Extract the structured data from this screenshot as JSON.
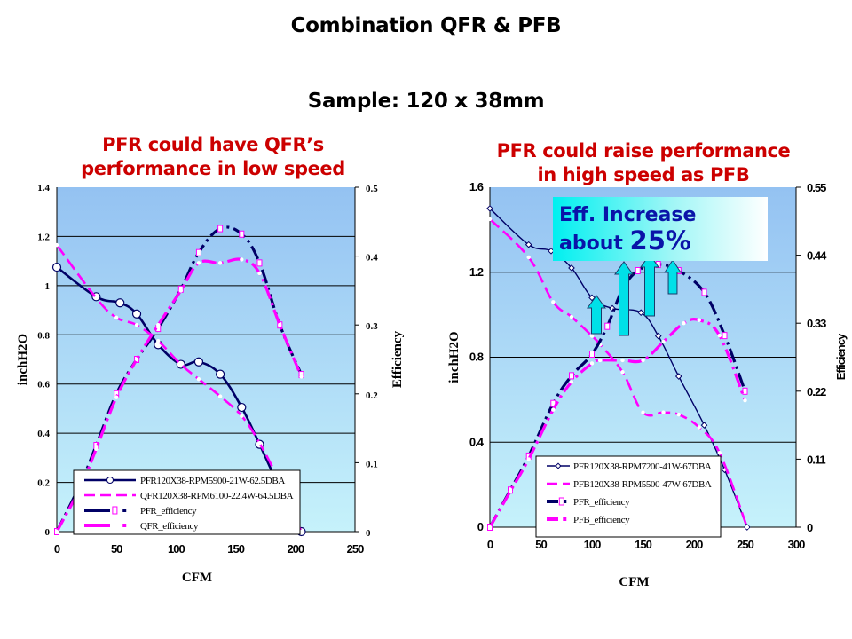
{
  "slide": {
    "title": "Combination QFR & PFB",
    "subtitle": "Sample: 120 x 38mm",
    "left_heading": [
      "PFR could have QFR’s",
      "performance in low speed"
    ],
    "right_heading": [
      "PFR could raise performance",
      "in high speed as PFB"
    ],
    "callout": {
      "line1": "Eff. Increase",
      "line2_prefix": "about ",
      "line2_value": "25%"
    }
  },
  "chart_data": [
    {
      "type": "line",
      "title": "PFR could have QFR’s performance in low speed",
      "xlabel": "CFM",
      "ylabel": "inchH2O",
      "y2label": "Efficiency",
      "xlim": [
        0,
        250
      ],
      "ylim": [
        0,
        1.4
      ],
      "y2lim": [
        0,
        0.5
      ],
      "x_ticks": [
        "0",
        "50",
        "100",
        "150",
        "200",
        "250"
      ],
      "y_ticks": [
        "0",
        "0.2",
        "0.4",
        "0.6",
        "0.8",
        "1",
        "1.2",
        "1.4"
      ],
      "y2_ticks": [
        "0",
        "0.1",
        "0.2",
        "0.3",
        "0.4",
        "0.5"
      ],
      "grid": true,
      "legend_position": "bottom-left",
      "series": [
        {
          "name": "PFR120X38-RPM5900-21W-62.5DBA",
          "axis": "left",
          "color": "#000066",
          "style": "solid-circle",
          "x": [
            0,
            33,
            53,
            67,
            85,
            104,
            119,
            137,
            155,
            170,
            187,
            205
          ],
          "y": [
            1.075,
            0.955,
            0.93,
            0.885,
            0.76,
            0.68,
            0.69,
            0.64,
            0.505,
            0.355,
            0.175,
            0
          ]
        },
        {
          "name": "QFR120X38-RPM6100-22.4W-64.5DBA",
          "axis": "left",
          "color": "#ff00ff",
          "style": "dashed",
          "x": [
            0,
            33,
            50,
            67,
            85,
            104,
            119,
            137,
            155,
            170,
            187,
            205
          ],
          "y": [
            1.165,
            0.95,
            0.87,
            0.84,
            0.775,
            0.68,
            0.62,
            0.55,
            0.47,
            0.36,
            0.2,
            0
          ]
        },
        {
          "name": "PFR_efficiency",
          "axis": "right",
          "color": "#000066",
          "style": "dashdot-square",
          "x": [
            0,
            20,
            33,
            50,
            67,
            85,
            104,
            119,
            137,
            155,
            170,
            187,
            205
          ],
          "y": [
            0,
            0.07,
            0.125,
            0.2,
            0.25,
            0.295,
            0.352,
            0.405,
            0.44,
            0.432,
            0.39,
            0.3,
            0.228
          ]
        },
        {
          "name": "QFR_efficiency",
          "axis": "right",
          "color": "#ff00ff",
          "style": "dashdot",
          "x": [
            0,
            20,
            33,
            50,
            67,
            85,
            104,
            119,
            137,
            155,
            170,
            187,
            205
          ],
          "y": [
            0,
            0.065,
            0.12,
            0.195,
            0.25,
            0.3,
            0.35,
            0.39,
            0.39,
            0.395,
            0.375,
            0.3,
            0.225
          ]
        }
      ]
    },
    {
      "type": "line",
      "title": "PFR could raise performance in high speed as PFB",
      "xlabel": "CFM",
      "ylabel": "inchH2O",
      "y2label": "Efficiency",
      "xlim": [
        0,
        300
      ],
      "ylim": [
        0,
        1.6
      ],
      "y2lim": [
        0,
        0.55
      ],
      "x_ticks": [
        "0",
        "50",
        "100",
        "150",
        "200",
        "250",
        "300"
      ],
      "y_ticks": [
        "0",
        "0.4",
        "0.8",
        "1.2",
        "1.6"
      ],
      "y2_ticks": [
        "0",
        "0.11",
        "0.22",
        "0.33",
        "0.44",
        "0.55"
      ],
      "grid": true,
      "legend_position": "bottom-center",
      "annotation": "Eff. Increase about 25%",
      "series": [
        {
          "name": "PFR120X38-RPM7200-41W-67DBA",
          "axis": "left",
          "color": "#000066",
          "style": "solid-diamond",
          "x": [
            0,
            38,
            60,
            80,
            100,
            120,
            148,
            165,
            185,
            210,
            230,
            252
          ],
          "y": [
            1.5,
            1.33,
            1.3,
            1.22,
            1.08,
            1.03,
            1.01,
            0.9,
            0.71,
            0.48,
            0.27,
            0
          ]
        },
        {
          "name": "PFB120X38-RPM5500-47W-67DBA",
          "axis": "left",
          "color": "#ff00ff",
          "style": "dashed",
          "x": [
            0,
            38,
            62,
            80,
            100,
            108,
            130,
            150,
            170,
            185,
            205,
            225,
            252
          ],
          "y": [
            1.45,
            1.27,
            1.06,
            0.99,
            0.9,
            0.86,
            0.73,
            0.54,
            0.54,
            0.53,
            0.47,
            0.35,
            0
          ]
        },
        {
          "name": "PFR_efficiency",
          "axis": "right",
          "color": "#000066",
          "style": "dashdot-square",
          "x": [
            0,
            20,
            38,
            62,
            80,
            100,
            115,
            130,
            145,
            165,
            185,
            210,
            230,
            250
          ],
          "y": [
            0,
            0.06,
            0.115,
            0.2,
            0.245,
            0.28,
            0.325,
            0.385,
            0.415,
            0.425,
            0.415,
            0.38,
            0.31,
            0.22
          ]
        },
        {
          "name": "PFB_efficiency",
          "axis": "right",
          "color": "#ff00ff",
          "style": "dashdot",
          "x": [
            0,
            20,
            38,
            62,
            80,
            100,
            108,
            130,
            150,
            170,
            190,
            205,
            225,
            250
          ],
          "y": [
            0,
            0.058,
            0.11,
            0.19,
            0.235,
            0.265,
            0.27,
            0.27,
            0.27,
            0.3,
            0.33,
            0.335,
            0.31,
            0.205
          ]
        }
      ]
    }
  ]
}
